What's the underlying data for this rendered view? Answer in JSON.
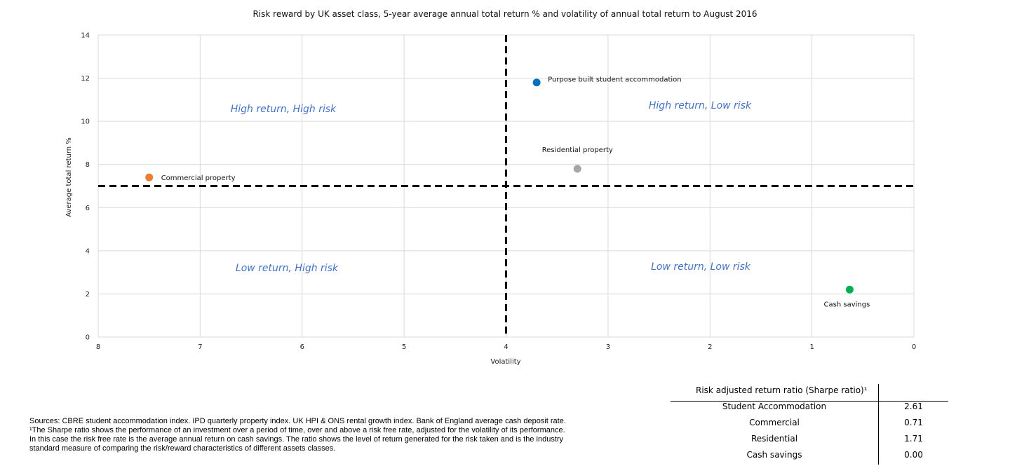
{
  "chart_data": {
    "type": "scatter",
    "title": "Risk reward by UK asset class, 5-year average annual total return % and volatility of annual total return to August 2016",
    "xlabel": "Volatility",
    "ylabel": "Average total return %",
    "xlim": [
      8,
      0
    ],
    "ylim": [
      0,
      14
    ],
    "x_reversed": true,
    "x_ticks": [
      "8",
      "7",
      "6",
      "5",
      "4",
      "3",
      "2",
      "1",
      "0"
    ],
    "y_ticks": [
      "0",
      "2",
      "4",
      "6",
      "8",
      "10",
      "12",
      "14"
    ],
    "grid": true,
    "points": [
      {
        "label": "Purpose built student accommodation",
        "x": 3.7,
        "y": 11.8,
        "color": "#0070c0"
      },
      {
        "label": "Residential property",
        "x": 3.3,
        "y": 7.8,
        "color": "#a5a5a5"
      },
      {
        "label": "Commercial property",
        "x": 7.5,
        "y": 7.4,
        "color": "#ed7d31"
      },
      {
        "label": "Cash savings",
        "x": 0.63,
        "y": 2.2,
        "color": "#00b050"
      }
    ],
    "dividers": {
      "x": 4,
      "y": 7
    },
    "quadrant_labels": {
      "top_left": "High return, High risk",
      "top_right": "High return, Low risk",
      "bottom_left": "Low return, High risk",
      "bottom_right": "Low return, Low risk"
    }
  },
  "sources": {
    "line1": "Sources: CBRE student accommodation index. IPD quarterly property index. UK HPI & ONS rental growth index. Bank of England average cash deposit rate.",
    "line2": "¹The Sharpe ratio shows the performance of an investment over a period of time, over and above a risk free rate, adjusted for the volatility of its performance.",
    "line3": "In this case the risk free rate is the average annual return on cash savings. The ratio shows the level of return generated for the risk taken and is the industry",
    "line4": "standard measure of comparing the risk/reward characteristics of different assets classes."
  },
  "sharpe_table": {
    "header": "Risk adjusted return ratio (Sharpe ratio)¹",
    "rows": [
      {
        "name": "Student Accommodation",
        "value": "2.61"
      },
      {
        "name": "Commercial",
        "value": "0.71"
      },
      {
        "name": "Residential",
        "value": "1.71"
      },
      {
        "name": "Cash savings",
        "value": "0.00"
      }
    ]
  }
}
